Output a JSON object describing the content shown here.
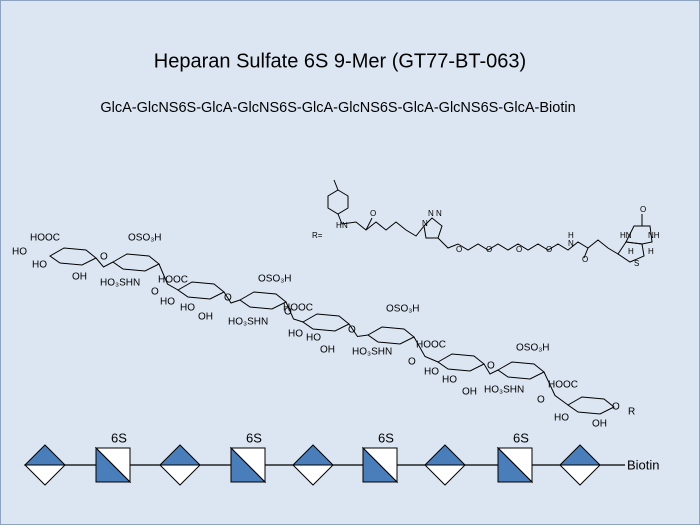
{
  "header": {
    "title": "Heparan Sulfate 6S 9-Mer (GT77-BT-063)",
    "subtitle": "GlcA-GlcNS6S-GlcA-GlcNS6S-GlcA-GlcNS6S-GlcA-GlcNS6S-GlcA-Biotin"
  },
  "structure": {
    "r_label": "R=",
    "labels": [
      "HOOC",
      "HO",
      "HO",
      "OH",
      "O",
      "OSO₃H",
      "HO₃SHN",
      "HOOC",
      "O",
      "HO",
      "HO",
      "OH",
      "O",
      "OSO₃H",
      "HO₃SHN",
      "HOOC",
      "O",
      "HO",
      "HO",
      "OH",
      "O",
      "OSO₃H",
      "HO₃SHN",
      "HOOC",
      "O",
      "HO",
      "HO",
      "OH",
      "O",
      "OSO₃H",
      "HO₃SHN",
      "HOOC",
      "O",
      "HO",
      "OH",
      "O",
      "R"
    ],
    "linker_labels": [
      "N",
      "H",
      "O",
      "N",
      "N",
      "N",
      "O",
      "O",
      "O",
      "O",
      "N",
      "H",
      "O",
      "O",
      "HN",
      "NH",
      "H",
      "H",
      "S"
    ]
  },
  "symbol_chain": {
    "modifications": [
      "6S",
      "6S",
      "6S",
      "6S"
    ],
    "end_label": "Biotin"
  }
}
